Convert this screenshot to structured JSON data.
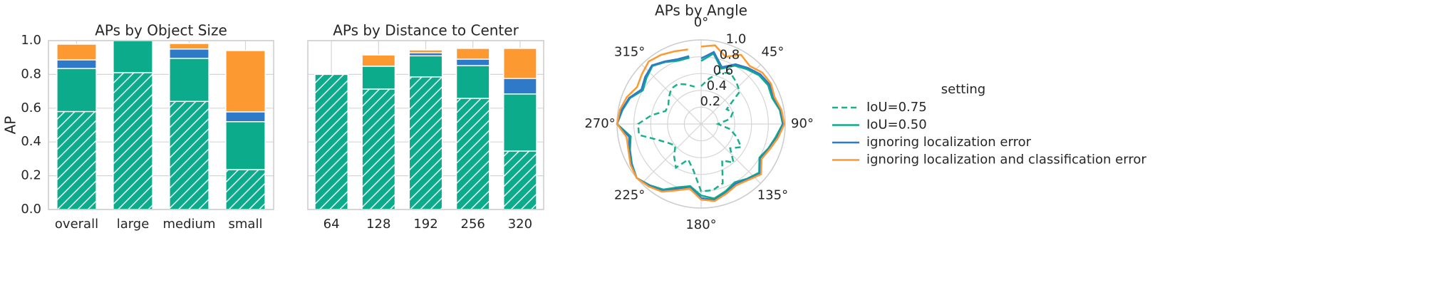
{
  "chart_data": [
    {
      "type": "bar",
      "title": "APs by Object Size",
      "ylabel": "AP",
      "categories": [
        "overall",
        "large",
        "medium",
        "small"
      ],
      "series": [
        {
          "color": "#0bab8b",
          "hatch": true,
          "values": [
            0.58,
            0.81,
            0.64,
            0.236
          ]
        },
        {
          "color": "#0bab8b",
          "values": [
            0.835,
            1.0,
            0.895,
            0.52
          ]
        },
        {
          "color": "#2f79c9",
          "values": [
            0.886,
            1.0,
            0.95,
            0.578
          ]
        },
        {
          "color": "#fc9930",
          "values": [
            0.979,
            1.0,
            0.983,
            0.941
          ]
        }
      ],
      "ylim": [
        0,
        1
      ],
      "yticks": [
        {
          "value": 0,
          "label": "0.0"
        },
        0.2,
        0.4,
        0.6,
        0.8,
        {
          "value": 1,
          "label": "1.0"
        }
      ],
      "grid": true
    },
    {
      "type": "bar",
      "title": "APs by Distance to Center",
      "categories": [
        "64",
        "128",
        "192",
        "256",
        "320"
      ],
      "series": [
        {
          "color": "#0bab8b",
          "hatch": true,
          "values": [
            0.8,
            0.713,
            0.785,
            0.658,
            0.346
          ]
        },
        {
          "color": "#0bab8b",
          "values": [
            0.8,
            0.848,
            0.91,
            0.852,
            0.684
          ]
        },
        {
          "color": "#2f79c9",
          "values": [
            0.8,
            0.848,
            0.928,
            0.89,
            0.776
          ]
        },
        {
          "color": "#fc9930",
          "values": [
            0.8,
            0.915,
            0.945,
            0.954,
            0.954
          ]
        }
      ],
      "ylim": [
        0,
        1
      ],
      "yticks": [
        0,
        0.2,
        0.4,
        0.6,
        0.8,
        1
      ],
      "grid": true
    },
    {
      "type": "polar",
      "title": "APs by Angle",
      "x": [
        0,
        10,
        20,
        30,
        40,
        50,
        60,
        70,
        80,
        90,
        100,
        110,
        120,
        130,
        140,
        150,
        160,
        170,
        180,
        190,
        200,
        210,
        220,
        230,
        240,
        250,
        260,
        270,
        280,
        290,
        300,
        310,
        320,
        330,
        340,
        350
      ],
      "xlim": [
        0,
        360
      ],
      "xticks": [
        {
          "value": 0,
          "label": "0°"
        },
        {
          "value": 45,
          "label": "45°"
        },
        {
          "value": 90,
          "label": "90°"
        },
        {
          "value": 135,
          "label": "135°"
        },
        {
          "value": 180,
          "label": "180°"
        },
        {
          "value": 225,
          "label": "225°"
        },
        {
          "value": 270,
          "label": "270°"
        },
        {
          "value": 315,
          "label": "315°"
        }
      ],
      "ylim": [
        0,
        1
      ],
      "yticks": [
        0.2,
        0.4,
        0.6,
        0.8,
        {
          "value": 1,
          "label": "1.0"
        }
      ],
      "legend": "right",
      "legend_title": "setting",
      "series": [
        {
          "name": "IoU=0.75",
          "color": "#1ab08f",
          "dashed": true,
          "values": [
            0.45,
            0.55,
            0.65,
            0.7,
            0.65,
            0.6,
            0.35,
            0.4,
            0.35,
            0.2,
            0.35,
            0.45,
            0.55,
            0.45,
            0.6,
            0.5,
            0.75,
            0.8,
            0.8,
            0.55,
            0.45,
            0.6,
            0.5,
            0.4,
            0.45,
            0.55,
            0.75,
            0.75,
            0.6,
            0.45,
            0.45,
            0.5,
            0.55,
            0.55,
            0.5,
            0.45
          ]
        },
        {
          "name": "IoU=0.50",
          "color": "#0bab8b",
          "values": [
            0.75,
            0.85,
            0.7,
            0.8,
            0.85,
            0.9,
            0.92,
            0.9,
            0.95,
            0.97,
            0.9,
            0.85,
            0.8,
            0.9,
            0.85,
            0.8,
            0.85,
            0.9,
            0.85,
            0.75,
            0.8,
            0.9,
            0.95,
            1.0,
            0.95,
            0.9,
            0.85,
            1.0,
            0.95,
            0.9,
            0.8,
            0.85,
            0.9,
            0.85,
            0.8,
            0.8
          ]
        },
        {
          "name": "ignoring localization error",
          "color": "#2f79c9",
          "values": [
            0.78,
            0.87,
            0.72,
            0.82,
            0.87,
            0.92,
            0.94,
            0.92,
            0.96,
            0.98,
            0.92,
            0.86,
            0.82,
            0.92,
            0.86,
            0.82,
            0.87,
            0.92,
            0.88,
            0.77,
            0.82,
            0.92,
            0.96,
            1.0,
            0.96,
            0.91,
            0.87,
            1.0,
            0.96,
            0.91,
            0.82,
            0.87,
            0.91,
            0.86,
            0.82,
            0.82
          ]
        },
        {
          "name": "ignoring localization and classification error",
          "color": "#fc9930",
          "values": [
            0.92,
            0.95,
            0.85,
            0.95,
            0.9,
            0.95,
            0.96,
            0.93,
            0.97,
            0.99,
            0.93,
            0.87,
            0.83,
            0.93,
            0.87,
            0.84,
            0.88,
            0.93,
            0.9,
            0.78,
            0.84,
            0.93,
            0.97,
            1.0,
            0.97,
            0.92,
            0.9,
            1.0,
            0.98,
            0.94,
            0.88,
            0.92,
            0.97,
            0.95,
            0.92,
            0.9
          ]
        }
      ]
    }
  ]
}
